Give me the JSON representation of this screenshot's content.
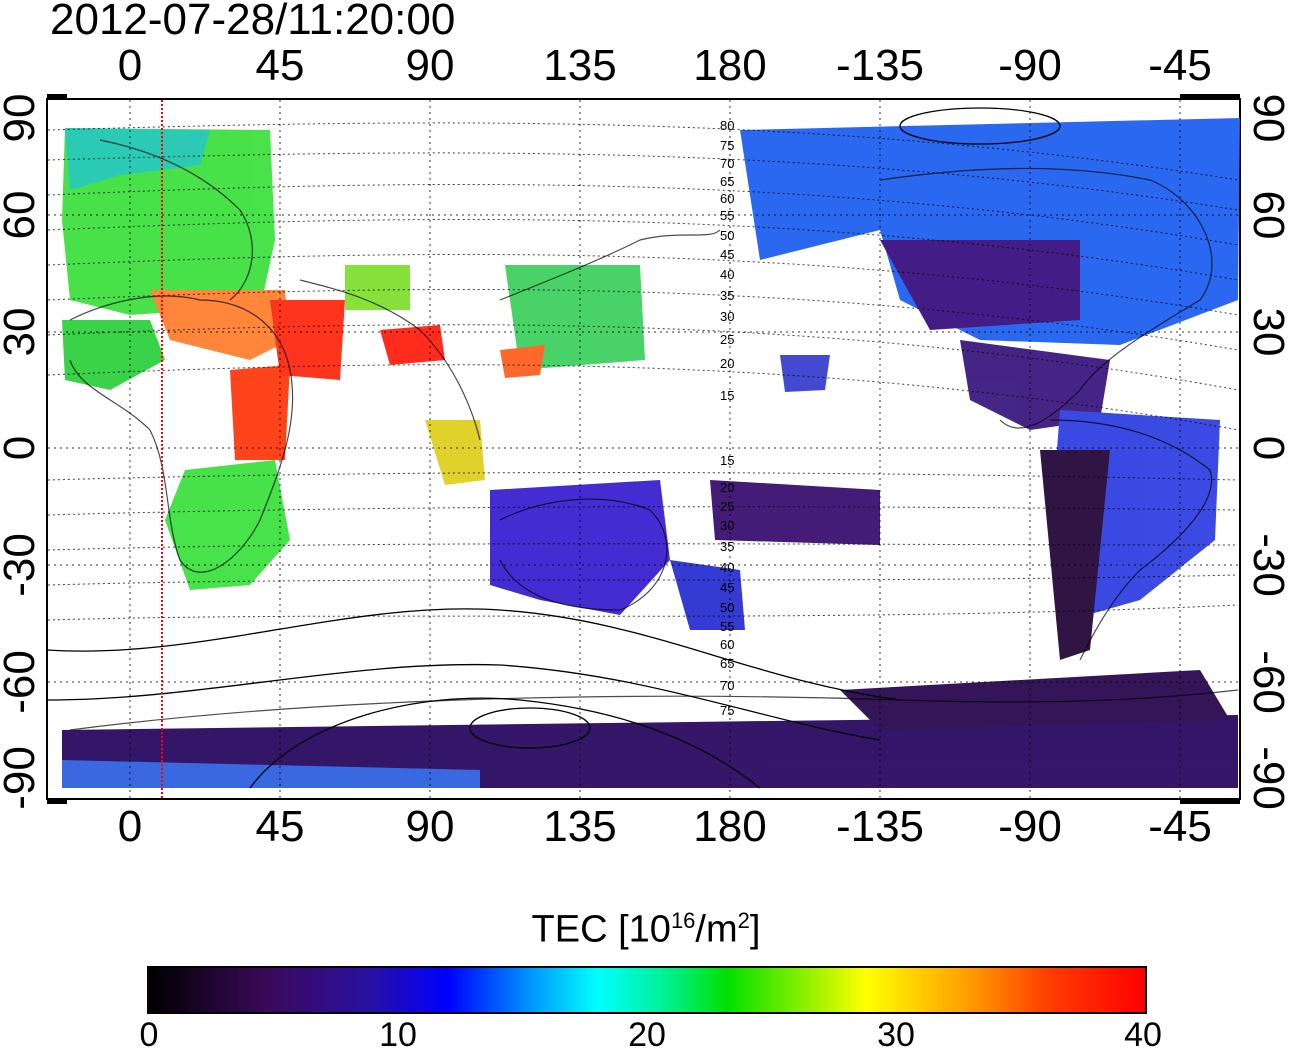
{
  "title": "2012-07-28/11:20:00",
  "axes": {
    "top_ticks": [
      "0",
      "45",
      "90",
      "135",
      "180",
      "-135",
      "-90",
      "-45"
    ],
    "bottom_ticks": [
      "0",
      "45",
      "90",
      "135",
      "180",
      "-135",
      "-90",
      "-45"
    ],
    "left_ticks": [
      "90",
      "60",
      "30",
      "0",
      "-30",
      "-60",
      "-90"
    ],
    "right_ticks": [
      "90",
      "60",
      "30",
      "0",
      "-30",
      "-60",
      "-90"
    ]
  },
  "colorbar": {
    "label_main": "TEC  [10",
    "label_sup1": "16",
    "label_mid": "/m",
    "label_sup2": "2",
    "label_end": "]",
    "ticks": [
      "0",
      "10",
      "20",
      "30",
      "40"
    ],
    "range": [
      0,
      40
    ]
  },
  "contours": {
    "north_labels": [
      "80",
      "75",
      "70",
      "65",
      "60",
      "55",
      "50",
      "45",
      "40",
      "35",
      "30",
      "25",
      "20",
      "15"
    ],
    "south_labels": [
      "15",
      "20",
      "25",
      "30",
      "35",
      "40",
      "45",
      "50",
      "55",
      "60",
      "65",
      "70",
      "75"
    ]
  },
  "colors": {
    "frame": "#000000",
    "terminator_line": "#ff0000",
    "low": "#2a0a5a",
    "mid": "#00e000",
    "high": "#ff2000"
  }
}
